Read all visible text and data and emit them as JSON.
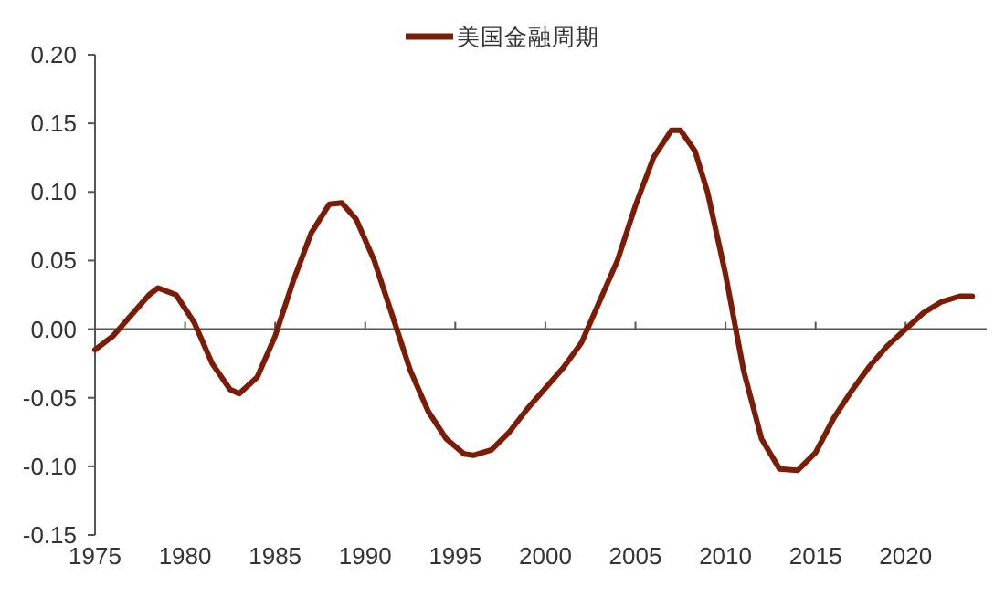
{
  "chart_data": {
    "type": "line",
    "series": [
      {
        "name": "美国金融周期",
        "color": "#7b1c06",
        "x": [
          1975,
          1976,
          1977,
          1978,
          1978.5,
          1979.5,
          1980.5,
          1981.5,
          1982.5,
          1983,
          1984,
          1985,
          1986,
          1987,
          1988,
          1988.7,
          1989.5,
          1990.5,
          1991.5,
          1992.5,
          1993.5,
          1994.5,
          1995.5,
          1996,
          1997,
          1998,
          1999,
          2000,
          2001,
          2002,
          2003,
          2004,
          2005,
          2006,
          2007,
          2007.5,
          2008.3,
          2009,
          2010,
          2011,
          2012,
          2013,
          2014,
          2015,
          2016,
          2017,
          2018,
          2019,
          2020,
          2021,
          2022,
          2023,
          2023.7
        ],
        "values": [
          -0.015,
          -0.005,
          0.01,
          0.025,
          0.03,
          0.025,
          0.005,
          -0.025,
          -0.044,
          -0.047,
          -0.035,
          -0.005,
          0.035,
          0.07,
          0.091,
          0.092,
          0.08,
          0.05,
          0.01,
          -0.03,
          -0.06,
          -0.08,
          -0.091,
          -0.092,
          -0.088,
          -0.075,
          -0.058,
          -0.043,
          -0.028,
          -0.01,
          0.02,
          0.05,
          0.09,
          0.125,
          0.145,
          0.145,
          0.13,
          0.1,
          0.04,
          -0.03,
          -0.08,
          -0.102,
          -0.103,
          -0.09,
          -0.065,
          -0.045,
          -0.027,
          -0.012,
          0.0,
          0.012,
          0.02,
          0.024,
          0.024
        ]
      }
    ],
    "xlim": [
      1975,
      2024.5
    ],
    "xticks": [
      1975,
      1980,
      1985,
      1990,
      1995,
      2000,
      2005,
      2010,
      2015,
      2020
    ],
    "ylim": [
      -0.15,
      0.2
    ],
    "yticks": [
      {
        "value": -0.15,
        "label": "-0.15"
      },
      {
        "value": -0.1,
        "label": "-0.10"
      },
      {
        "value": -0.05,
        "label": "-0.05"
      },
      {
        "value": 0,
        "label": "0.00"
      },
      {
        "value": 0.05,
        "label": "0.05"
      },
      {
        "value": 0.1,
        "label": "0.10"
      },
      {
        "value": 0.15,
        "label": "0.15"
      },
      {
        "value": 0.2,
        "label": "0.20"
      }
    ],
    "legend": "top",
    "marker": "none",
    "line_style": "solid"
  }
}
